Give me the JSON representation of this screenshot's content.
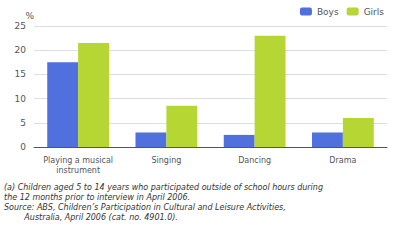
{
  "chart_data": {
    "type": "bar",
    "categories": [
      "Playing a musical\ninstrument",
      "Singing",
      "Dancing",
      "Drama"
    ],
    "series": [
      {
        "name": "Boys",
        "values": [
          17.5,
          3.0,
          2.5,
          3.0
        ]
      },
      {
        "name": "Girls",
        "values": [
          21.5,
          8.5,
          23.0,
          6.0
        ]
      }
    ],
    "ylabel": "%",
    "ylim": [
      0,
      25
    ],
    "yticks": [
      0,
      5,
      10,
      15,
      20,
      25
    ],
    "grid": true,
    "legend": "upper right",
    "annotations": [
      "(a) Children aged 5 to 14 years who participated outside of school hours during",
      "the 12 months prior to interview in April 2006.",
      "Source: ABS, Children’s Participation in Cultural and Leisure Activities,",
      "        Australia, April 2006 (cat. no. 4901.0)."
    ]
  }
}
